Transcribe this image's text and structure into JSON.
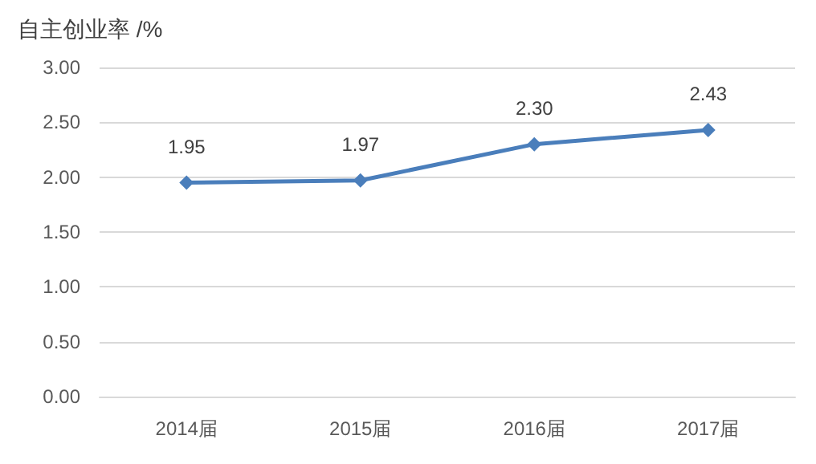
{
  "chart_data": {
    "type": "line",
    "ylabel": "自主创业率 /%",
    "categories": [
      "2014届",
      "2015届",
      "2016届",
      "2017届"
    ],
    "values": [
      1.95,
      1.97,
      2.3,
      2.43
    ],
    "value_labels": [
      "1.95",
      "1.97",
      "2.30",
      "2.43"
    ],
    "color": "#4a7ebb",
    "ylim": [
      0,
      3
    ],
    "yticks": [
      {
        "value": 0,
        "label": "0.00"
      },
      {
        "value": 0.5,
        "label": "0.50"
      },
      {
        "value": 1,
        "label": "1.00"
      },
      {
        "value": 1.5,
        "label": "1.50"
      },
      {
        "value": 2,
        "label": "2.00"
      },
      {
        "value": 2.5,
        "label": "2.50"
      },
      {
        "value": 3,
        "label": "3.00"
      }
    ],
    "grid": "y",
    "marker": "diamond",
    "line_style": "solid"
  }
}
